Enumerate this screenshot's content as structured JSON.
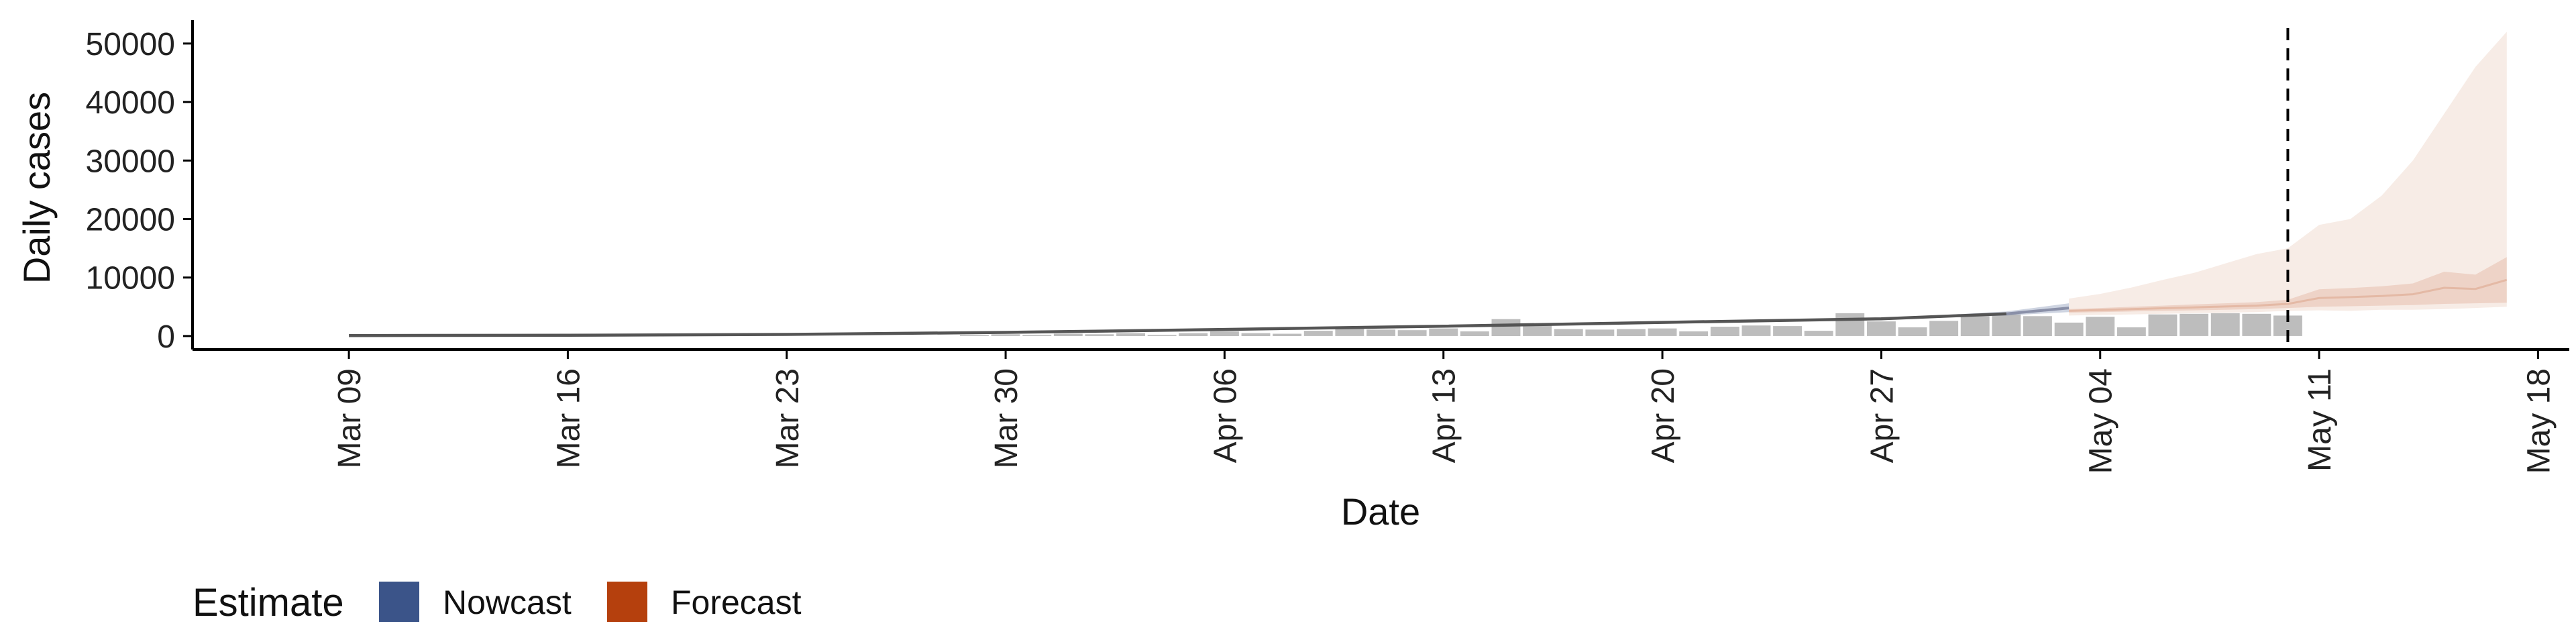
{
  "chart_data": {
    "type": "area",
    "xlabel": "Date",
    "ylabel": "Daily cases",
    "y_ticks": [
      0,
      10000,
      20000,
      30000,
      40000,
      50000
    ],
    "y_tick_labels": [
      "0",
      "10000",
      "20000",
      "30000",
      "40000",
      "50000"
    ],
    "ylim": [
      -2300,
      54000
    ],
    "xlim": [
      "2020-03-04",
      "2020-05-19"
    ],
    "x_ticks": [
      "2020-03-09",
      "2020-03-16",
      "2020-03-23",
      "2020-03-30",
      "2020-04-06",
      "2020-04-13",
      "2020-04-20",
      "2020-04-27",
      "2020-05-04",
      "2020-05-11",
      "2020-05-18"
    ],
    "x_tick_labels": [
      "Mar 09",
      "Mar 16",
      "Mar 23",
      "Mar 30",
      "Apr 06",
      "Apr 13",
      "Apr 20",
      "Apr 27",
      "May 04",
      "May 11",
      "May 18"
    ],
    "cutoff_date": "2020-05-10",
    "reported_cases": {
      "dates": [
        "2020-03-29",
        "2020-03-30",
        "2020-03-31",
        "2020-04-01",
        "2020-04-02",
        "2020-04-03",
        "2020-04-04",
        "2020-04-05",
        "2020-04-06",
        "2020-04-07",
        "2020-04-08",
        "2020-04-09",
        "2020-04-10",
        "2020-04-11",
        "2020-04-12",
        "2020-04-13",
        "2020-04-14",
        "2020-04-15",
        "2020-04-16",
        "2020-04-17",
        "2020-04-18",
        "2020-04-19",
        "2020-04-20",
        "2020-04-21",
        "2020-04-22",
        "2020-04-23",
        "2020-04-24",
        "2020-04-25",
        "2020-04-26",
        "2020-04-27",
        "2020-04-28",
        "2020-04-29",
        "2020-04-30",
        "2020-05-01",
        "2020-05-02",
        "2020-05-03",
        "2020-05-04",
        "2020-05-05",
        "2020-05-06",
        "2020-05-07",
        "2020-05-08",
        "2020-05-09",
        "2020-05-10"
      ],
      "values": [
        200,
        300,
        200,
        400,
        300,
        500,
        200,
        500,
        800,
        500,
        400,
        900,
        1300,
        1100,
        1000,
        1300,
        800,
        2900,
        1800,
        1200,
        1100,
        1200,
        1300,
        800,
        1600,
        1800,
        1700,
        900,
        3900,
        2500,
        1500,
        2600,
        3400,
        3700,
        3400,
        2300,
        3300,
        1500,
        3700,
        3800,
        3900,
        3800,
        3500
      ]
    },
    "series": [
      {
        "name": "Nowcast",
        "color": "#3B5489",
        "dates": [
          "2020-03-09",
          "2020-03-16",
          "2020-03-23",
          "2020-03-30",
          "2020-04-06",
          "2020-04-13",
          "2020-04-20",
          "2020-04-27",
          "2020-05-01",
          "2020-05-02",
          "2020-05-03"
        ],
        "median": [
          80,
          130,
          280,
          620,
          1130,
          1680,
          2330,
          2950,
          3800,
          4300,
          4800
        ],
        "lower": [
          80,
          130,
          280,
          620,
          1130,
          1680,
          2330,
          2900,
          3500,
          3800,
          4100
        ],
        "upper": [
          80,
          130,
          280,
          620,
          1130,
          1680,
          2330,
          3000,
          4200,
          4900,
          5600
        ]
      },
      {
        "name": "Forecast",
        "color": "#B5400D",
        "dates": [
          "2020-05-03",
          "2020-05-04",
          "2020-05-05",
          "2020-05-06",
          "2020-05-07",
          "2020-05-08",
          "2020-05-09",
          "2020-05-10",
          "2020-05-11",
          "2020-05-12",
          "2020-05-13",
          "2020-05-14",
          "2020-05-15",
          "2020-05-16",
          "2020-05-17"
        ],
        "inner_lower": [
          4000,
          4100,
          4200,
          4300,
          4400,
          4500,
          4600,
          4800,
          5000,
          5100,
          5200,
          5300,
          5500,
          5600,
          5700
        ],
        "inner_upper": [
          4600,
          4800,
          5000,
          5200,
          5400,
          5600,
          5800,
          6200,
          8000,
          8200,
          8500,
          9000,
          11000,
          10500,
          13500
        ],
        "outer_lower": [
          3500,
          3600,
          3700,
          3800,
          3900,
          4000,
          4100,
          4300,
          4400,
          4300,
          4500,
          4500,
          4600,
          4800,
          5000
        ],
        "outer_upper": [
          6400,
          7200,
          8300,
          9600,
          10800,
          12400,
          14000,
          15000,
          19000,
          20000,
          24000,
          30000,
          38000,
          46000,
          52000
        ]
      }
    ]
  },
  "legend": {
    "title": "Estimate",
    "items": [
      {
        "label": "Nowcast",
        "color": "#3B5489"
      },
      {
        "label": "Forecast",
        "color": "#B5400D"
      }
    ]
  }
}
